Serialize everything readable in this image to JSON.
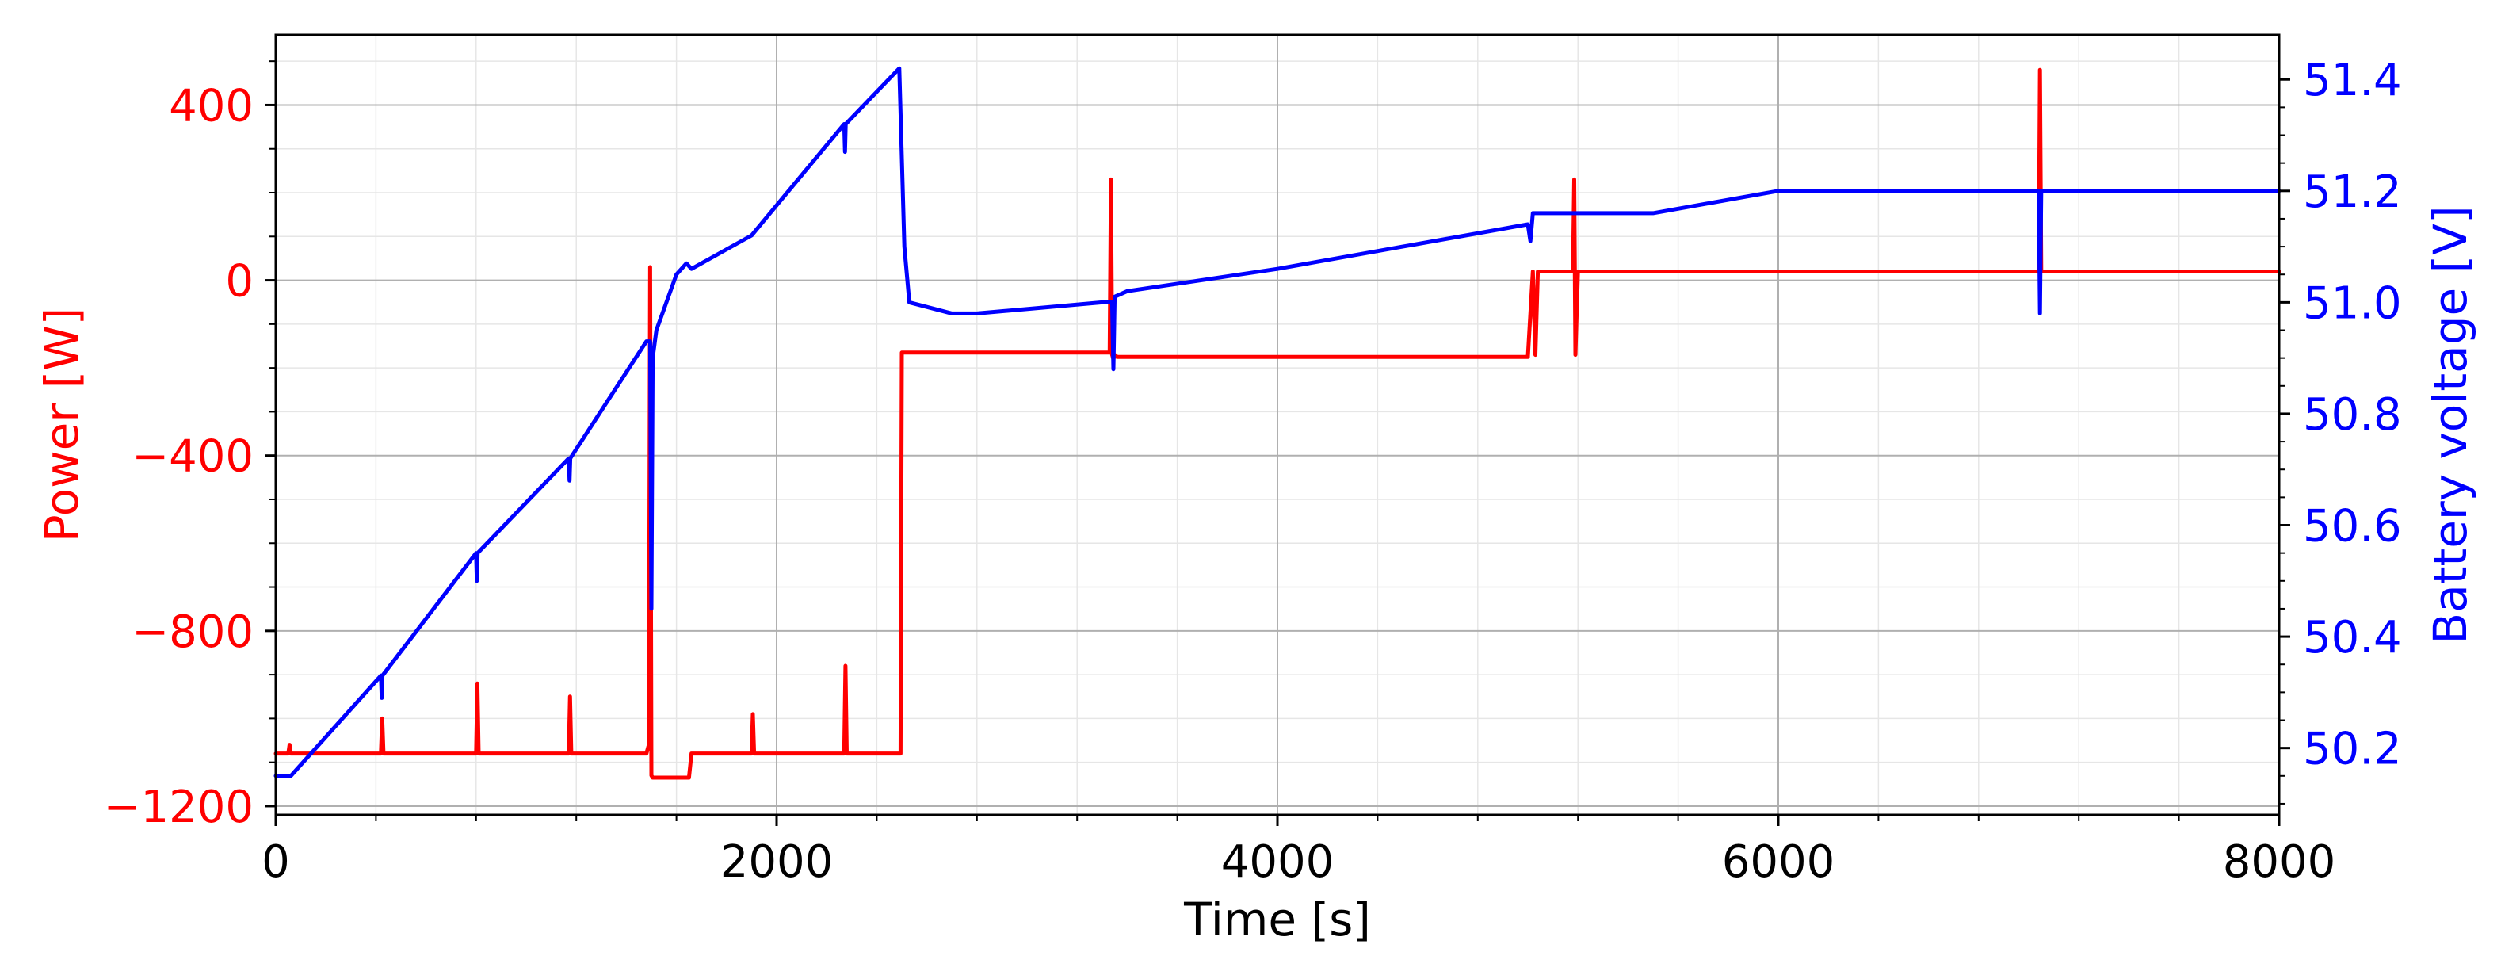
{
  "chart_data": {
    "type": "line",
    "title": "",
    "xlabel": "Time [s]",
    "ylabel_left": "Power [W]",
    "ylabel_right": "Battery voltage [V]",
    "xlim": [
      0,
      8000
    ],
    "ylim_left": [
      -1220,
      560
    ],
    "ylim_right": [
      50.08,
      51.48
    ],
    "x_ticks": [
      0,
      2000,
      4000,
      6000,
      8000
    ],
    "x_tick_labels": [
      "0",
      "2000",
      "4000",
      "6000",
      "8000"
    ],
    "y_left_ticks": [
      400,
      0,
      -400,
      -800,
      -1200
    ],
    "y_left_tick_labels": [
      "400",
      "0",
      "−400",
      "−800",
      "−1200"
    ],
    "y_right_ticks": [
      51.4,
      51.2,
      51.0,
      50.8,
      50.6,
      50.4,
      50.2
    ],
    "y_right_tick_labels": [
      "51.4",
      "51.2",
      "51.0",
      "50.8",
      "50.6",
      "50.4",
      "50.2"
    ],
    "grid": true,
    "legend": "none",
    "colors": {
      "power": "#ff0000",
      "voltage": "#0000ff",
      "axes": "#000000",
      "grid": "#b0b0b0"
    },
    "series": [
      {
        "axis": "left",
        "color": "#ff0000",
        "x": [
          0,
          50,
          55,
          60,
          100,
          420,
          425,
          430,
          800,
          805,
          810,
          1170,
          1175,
          1180,
          1480,
          1490,
          1495,
          1500,
          1505,
          1510,
          1515,
          1650,
          1660,
          1670,
          1700,
          1900,
          1905,
          1910,
          2270,
          2275,
          2280,
          2495,
          2500,
          2510,
          2520,
          3330,
          3335,
          3340,
          3345,
          3350,
          3360,
          5000,
          5020,
          5030,
          5040,
          5180,
          5185,
          5190,
          5200,
          6000,
          7040,
          7045,
          7050,
          7060,
          8000
        ],
        "y": [
          -1080,
          -1080,
          -1060,
          -1080,
          -1080,
          -1080,
          -1000,
          -1080,
          -1080,
          -920,
          -1080,
          -1080,
          -950,
          -1080,
          -1080,
          -1060,
          30,
          -1130,
          -1135,
          -1135,
          -1135,
          -1135,
          -1080,
          -1080,
          -1080,
          -1080,
          -990,
          -1080,
          -1080,
          -880,
          -1080,
          -1080,
          -165,
          -165,
          -165,
          -165,
          230,
          -170,
          -180,
          -170,
          -175,
          -175,
          20,
          -170,
          20,
          20,
          230,
          -170,
          20,
          20,
          20,
          480,
          20,
          20,
          20
        ]
      },
      {
        "axis": "right",
        "color": "#0000ff",
        "x": [
          0,
          60,
          420,
          423,
          426,
          800,
          803,
          806,
          1170,
          1173,
          1176,
          1480,
          1495,
          1500,
          1505,
          1520,
          1600,
          1640,
          1660,
          1900,
          2270,
          2273,
          2276,
          2490,
          2510,
          2530,
          2700,
          2800,
          3300,
          3340,
          3345,
          3350,
          3400,
          4000,
          4500,
          5000,
          5010,
          5020,
          5500,
          6000,
          7000,
          7040,
          7045,
          7050,
          7100,
          8000
        ],
        "y": [
          50.15,
          50.15,
          50.33,
          50.29,
          50.33,
          50.55,
          50.5,
          50.55,
          50.72,
          50.68,
          50.72,
          50.93,
          50.93,
          50.45,
          50.9,
          50.95,
          51.05,
          51.07,
          51.06,
          51.12,
          51.32,
          51.27,
          51.32,
          51.42,
          51.1,
          51.0,
          50.98,
          50.98,
          51.0,
          51.0,
          50.88,
          51.01,
          51.02,
          51.06,
          51.1,
          51.14,
          51.11,
          51.16,
          51.16,
          51.2,
          51.2,
          51.2,
          50.98,
          51.2,
          51.2,
          51.2
        ]
      }
    ]
  }
}
